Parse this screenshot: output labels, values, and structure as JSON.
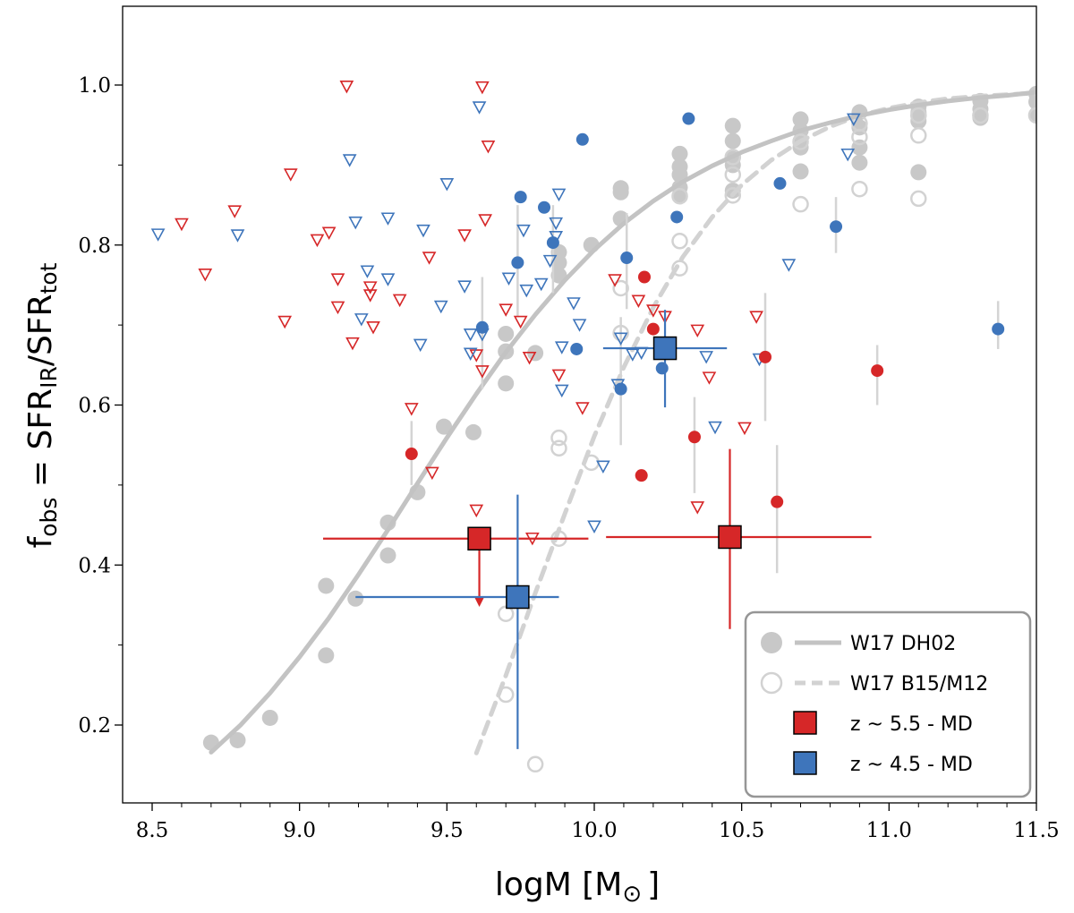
{
  "chart_data": {
    "type": "scatter",
    "xlabel_main": "logM [M",
    "xlabel_sub": "⊙",
    "xlabel_close": "]",
    "ylabel_f": "f",
    "ylabel_sub1": "obs",
    "ylabel_eq": " = SFR",
    "ylabel_sub2": "IR",
    "ylabel_slash": "/SFR",
    "ylabel_sub3": "tot",
    "xlim": [
      8.4,
      11.5
    ],
    "ylim": [
      0.08,
      1.1
    ],
    "xticks": [
      "8.5",
      "9.0",
      "9.5",
      "10.0",
      "10.5",
      "11.0",
      "11.5"
    ],
    "yticks": [
      "0.2",
      "0.4",
      "0.6",
      "0.8",
      "1.0"
    ],
    "colors": {
      "red": "#d62728",
      "blue": "#3e75bb",
      "gray_filled": "#c8c8c8",
      "gray_open": "#d2d2d2",
      "curve": "#c3c3c3"
    },
    "legend": {
      "position": "lower-right",
      "entries": [
        "W17 DH02",
        "W17 B15/M12",
        "z ~ 5.5 - MD",
        "z ~ 4.5 - MD"
      ]
    },
    "series": [
      {
        "name": "W17 DH02",
        "kind": "filled-circles",
        "points": [
          [
            8.7,
            0.178
          ],
          [
            8.79,
            0.181
          ],
          [
            8.9,
            0.209
          ],
          [
            9.09,
            0.287
          ],
          [
            9.09,
            0.374
          ],
          [
            9.19,
            0.358
          ],
          [
            9.3,
            0.412
          ],
          [
            9.3,
            0.453
          ],
          [
            9.4,
            0.491
          ],
          [
            9.49,
            0.573
          ],
          [
            9.59,
            0.566
          ],
          [
            9.7,
            0.627
          ],
          [
            9.7,
            0.667
          ],
          [
            9.7,
            0.689
          ],
          [
            9.8,
            0.665
          ],
          [
            9.88,
            0.762
          ],
          [
            9.88,
            0.778
          ],
          [
            9.88,
            0.791
          ],
          [
            9.99,
            0.8
          ],
          [
            10.09,
            0.833
          ],
          [
            10.09,
            0.871
          ],
          [
            10.09,
            0.866
          ],
          [
            10.29,
            0.862
          ],
          [
            10.29,
            0.872
          ],
          [
            10.29,
            0.888
          ],
          [
            10.29,
            0.898
          ],
          [
            10.29,
            0.914
          ],
          [
            10.47,
            0.868
          ],
          [
            10.47,
            0.9
          ],
          [
            10.47,
            0.909
          ],
          [
            10.47,
            0.93
          ],
          [
            10.47,
            0.949
          ],
          [
            10.7,
            0.892
          ],
          [
            10.7,
            0.922
          ],
          [
            10.7,
            0.93
          ],
          [
            10.7,
            0.943
          ],
          [
            10.7,
            0.957
          ],
          [
            10.9,
            0.903
          ],
          [
            10.9,
            0.922
          ],
          [
            10.9,
            0.947
          ],
          [
            10.9,
            0.966
          ],
          [
            11.1,
            0.891
          ],
          [
            11.1,
            0.955
          ],
          [
            11.1,
            0.966
          ],
          [
            11.1,
            0.973
          ],
          [
            11.31,
            0.959
          ],
          [
            11.31,
            0.97
          ],
          [
            11.31,
            0.98
          ],
          [
            11.5,
            0.963
          ],
          [
            11.5,
            0.979
          ],
          [
            11.5,
            0.989
          ]
        ]
      },
      {
        "name": "W17 B15/M12",
        "kind": "open-circles",
        "points": [
          [
            9.7,
            0.238
          ],
          [
            9.7,
            0.339
          ],
          [
            9.8,
            0.151
          ],
          [
            9.88,
            0.433
          ],
          [
            9.88,
            0.546
          ],
          [
            9.88,
            0.559
          ],
          [
            9.99,
            0.528
          ],
          [
            10.09,
            0.69
          ],
          [
            10.09,
            0.746
          ],
          [
            10.29,
            0.771
          ],
          [
            10.29,
            0.805
          ],
          [
            10.29,
            0.861
          ],
          [
            10.47,
            0.862
          ],
          [
            10.47,
            0.888
          ],
          [
            10.47,
            0.91
          ],
          [
            10.7,
            0.851
          ],
          [
            10.7,
            0.929
          ],
          [
            10.9,
            0.87
          ],
          [
            10.9,
            0.935
          ],
          [
            10.9,
            0.952
          ],
          [
            11.1,
            0.858
          ],
          [
            11.1,
            0.937
          ],
          [
            11.1,
            0.962
          ],
          [
            11.31,
            0.962
          ],
          [
            11.5,
            0.962
          ]
        ]
      },
      {
        "name": "W17 DH02",
        "kind": "solid-curve",
        "x": [
          8.7,
          8.8,
          8.9,
          9.0,
          9.1,
          9.2,
          9.3,
          9.4,
          9.5,
          9.6,
          9.7,
          9.8,
          9.9,
          10.0,
          10.1,
          10.2,
          10.3,
          10.4,
          10.5,
          10.6,
          10.7,
          10.8,
          10.9,
          11.0,
          11.1,
          11.2,
          11.3,
          11.4,
          11.5
        ],
        "y": [
          0.166,
          0.2,
          0.24,
          0.285,
          0.334,
          0.388,
          0.444,
          0.502,
          0.559,
          0.614,
          0.666,
          0.713,
          0.756,
          0.794,
          0.827,
          0.855,
          0.879,
          0.899,
          0.916,
          0.93,
          0.943,
          0.953,
          0.962,
          0.969,
          0.975,
          0.98,
          0.984,
          0.987,
          0.991
        ]
      },
      {
        "name": "W17 B15/M12",
        "kind": "dashed-curve",
        "x": [
          9.6,
          9.7,
          9.8,
          9.9,
          10.0,
          10.1,
          10.2,
          10.3,
          10.4,
          10.5,
          10.6,
          10.7,
          10.8,
          10.9,
          11.0,
          11.1,
          11.2,
          11.3,
          11.4,
          11.5
        ],
        "y": [
          0.165,
          0.262,
          0.365,
          0.464,
          0.561,
          0.647,
          0.722,
          0.785,
          0.835,
          0.875,
          0.906,
          0.93,
          0.948,
          0.962,
          0.971,
          0.978,
          0.983,
          0.986,
          0.988,
          0.99
        ]
      },
      {
        "name": "z ~ 5.5 - MD",
        "kind": "red-detections",
        "points": [
          [
            9.38,
            0.539
          ],
          [
            10.17,
            0.76
          ],
          [
            10.2,
            0.695
          ],
          [
            10.16,
            0.512
          ],
          [
            10.34,
            0.56
          ],
          [
            10.58,
            0.66
          ],
          [
            10.62,
            0.479
          ],
          [
            10.96,
            0.643
          ]
        ],
        "yerr": [
          [
            0.5,
            0.58
          ],
          null,
          null,
          null,
          [
            0.49,
            0.61
          ],
          [
            0.58,
            0.74
          ],
          [
            0.39,
            0.55
          ],
          [
            0.6,
            0.675
          ]
        ]
      },
      {
        "name": "z ~ 4.5 - MD",
        "kind": "blue-detections",
        "points": [
          [
            9.62,
            0.697
          ],
          [
            9.74,
            0.778
          ],
          [
            9.75,
            0.86
          ],
          [
            9.83,
            0.847
          ],
          [
            9.86,
            0.803
          ],
          [
            9.96,
            0.932
          ],
          [
            9.94,
            0.67
          ],
          [
            10.09,
            0.62
          ],
          [
            10.11,
            0.784
          ],
          [
            10.23,
            0.646
          ],
          [
            10.28,
            0.835
          ],
          [
            10.32,
            0.958
          ],
          [
            10.63,
            0.877
          ],
          [
            10.82,
            0.823
          ],
          [
            11.37,
            0.695
          ]
        ],
        "yerr": [
          [
            0.62,
            0.76
          ],
          [
            0.71,
            0.85
          ],
          null,
          null,
          [
            0.74,
            0.85
          ],
          null,
          null,
          [
            0.55,
            0.71
          ],
          [
            0.72,
            0.84
          ],
          null,
          null,
          null,
          null,
          [
            0.79,
            0.86
          ],
          [
            0.67,
            0.73
          ]
        ]
      },
      {
        "name": "z ~ 5.5 - MD",
        "kind": "red-upper-limits",
        "points": [
          [
            8.68,
            0.763
          ],
          [
            8.78,
            0.842
          ],
          [
            8.6,
            0.826
          ],
          [
            8.97,
            0.888
          ],
          [
            8.95,
            0.704
          ],
          [
            9.06,
            0.806
          ],
          [
            9.1,
            0.815
          ],
          [
            9.13,
            0.722
          ],
          [
            9.13,
            0.757
          ],
          [
            9.16,
            0.998
          ],
          [
            9.18,
            0.677
          ],
          [
            9.24,
            0.747
          ],
          [
            9.24,
            0.737
          ],
          [
            9.25,
            0.697
          ],
          [
            9.34,
            0.731
          ],
          [
            9.38,
            0.595
          ],
          [
            9.44,
            0.784
          ],
          [
            9.45,
            0.515
          ],
          [
            9.56,
            0.812
          ],
          [
            9.6,
            0.662
          ],
          [
            9.64,
            0.923
          ],
          [
            9.63,
            0.831
          ],
          [
            9.62,
            0.642
          ],
          [
            9.62,
            0.997
          ],
          [
            9.6,
            0.468
          ],
          [
            9.7,
            0.719
          ],
          [
            9.75,
            0.704
          ],
          [
            9.78,
            0.659
          ],
          [
            9.79,
            0.433
          ],
          [
            9.88,
            0.637
          ],
          [
            9.96,
            0.596
          ],
          [
            10.07,
            0.756
          ],
          [
            10.15,
            0.73
          ],
          [
            10.2,
            0.718
          ],
          [
            10.24,
            0.71
          ],
          [
            10.35,
            0.693
          ],
          [
            10.35,
            0.472
          ],
          [
            10.39,
            0.634
          ],
          [
            10.51,
            0.571
          ],
          [
            10.55,
            0.71
          ]
        ]
      },
      {
        "name": "z ~ 4.5 - MD",
        "kind": "blue-upper-limits",
        "points": [
          [
            8.52,
            0.813
          ],
          [
            8.79,
            0.812
          ],
          [
            9.17,
            0.906
          ],
          [
            9.19,
            0.828
          ],
          [
            9.21,
            0.707
          ],
          [
            9.23,
            0.767
          ],
          [
            9.3,
            0.833
          ],
          [
            9.3,
            0.757
          ],
          [
            9.41,
            0.675
          ],
          [
            9.42,
            0.818
          ],
          [
            9.48,
            0.723
          ],
          [
            9.5,
            0.876
          ],
          [
            9.56,
            0.748
          ],
          [
            9.58,
            0.664
          ],
          [
            9.58,
            0.688
          ],
          [
            9.61,
            0.972
          ],
          [
            9.62,
            0.688
          ],
          [
            9.71,
            0.758
          ],
          [
            9.76,
            0.818
          ],
          [
            9.77,
            0.743
          ],
          [
            9.82,
            0.751
          ],
          [
            9.85,
            0.78
          ],
          [
            9.87,
            0.827
          ],
          [
            9.87,
            0.81
          ],
          [
            9.88,
            0.863
          ],
          [
            9.89,
            0.672
          ],
          [
            9.89,
            0.618
          ],
          [
            9.93,
            0.727
          ],
          [
            9.95,
            0.7
          ],
          [
            10.0,
            0.448
          ],
          [
            10.03,
            0.523
          ],
          [
            10.08,
            0.625
          ],
          [
            10.09,
            0.683
          ],
          [
            10.13,
            0.663
          ],
          [
            10.16,
            0.665
          ],
          [
            10.38,
            0.66
          ],
          [
            10.41,
            0.572
          ],
          [
            10.56,
            0.657
          ],
          [
            10.66,
            0.775
          ],
          [
            10.86,
            0.913
          ],
          [
            10.88,
            0.957
          ]
        ]
      },
      {
        "name": "z ~ 5.5 - MD",
        "kind": "red-squares",
        "points": [
          [
            9.61,
            0.433
          ],
          [
            10.46,
            0.435
          ]
        ],
        "xerr": [
          [
            9.08,
            9.98
          ],
          [
            10.04,
            10.94
          ]
        ],
        "yerr": [
          [
            0.35,
            0.433
          ],
          [
            0.32,
            0.545
          ]
        ],
        "upper_limit": [
          true,
          false
        ]
      },
      {
        "name": "z ~ 4.5 - MD",
        "kind": "blue-squares",
        "points": [
          [
            9.74,
            0.36
          ],
          [
            10.24,
            0.671
          ]
        ],
        "xerr": [
          [
            9.19,
            9.88
          ],
          [
            10.03,
            10.45
          ]
        ],
        "yerr": [
          [
            0.17,
            0.488
          ],
          [
            0.597,
            0.719
          ]
        ]
      }
    ]
  }
}
